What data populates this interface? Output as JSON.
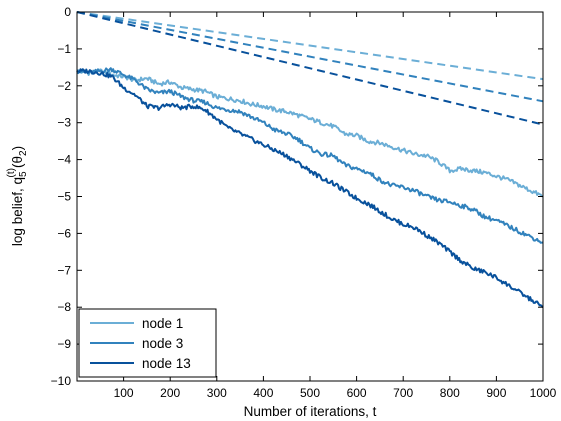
{
  "chart_data": {
    "type": "line",
    "xlabel": "Number of iterations, t",
    "ylabel": {
      "prefix": "log belief, q",
      "sub": "5",
      "sup": "(t)",
      "theta_open": "(θ",
      "theta_sub": "2",
      "theta_close": ")"
    },
    "xlim": [
      0,
      1000
    ],
    "ylim": [
      -10,
      0
    ],
    "xticks": [
      100,
      200,
      300,
      400,
      500,
      600,
      700,
      800,
      900,
      1000
    ],
    "yticks": [
      0,
      -1,
      -2,
      -3,
      -4,
      -5,
      -6,
      -7,
      -8,
      -9,
      -10
    ],
    "ytick_labels": [
      "0",
      "−1",
      "−2",
      "−3",
      "−4",
      "−5",
      "−6",
      "−7",
      "−8",
      "−9",
      "−10"
    ],
    "grid": false,
    "legend_position": "bottom-left",
    "series": [
      {
        "name": "node 1",
        "color": "#6baed6",
        "style": "solid",
        "points": [
          [
            0,
            -1.6
          ],
          [
            25,
            -1.65
          ],
          [
            50,
            -1.6
          ],
          [
            75,
            -1.7
          ],
          [
            100,
            -1.75
          ],
          [
            125,
            -1.85
          ],
          [
            150,
            -1.8
          ],
          [
            175,
            -1.95
          ],
          [
            200,
            -1.9
          ],
          [
            225,
            -2.05
          ],
          [
            250,
            -2.1
          ],
          [
            275,
            -2.15
          ],
          [
            300,
            -2.3
          ],
          [
            325,
            -2.35
          ],
          [
            350,
            -2.4
          ],
          [
            375,
            -2.5
          ],
          [
            400,
            -2.55
          ],
          [
            425,
            -2.65
          ],
          [
            450,
            -2.7
          ],
          [
            475,
            -2.8
          ],
          [
            500,
            -2.9
          ],
          [
            525,
            -3.0
          ],
          [
            550,
            -3.1
          ],
          [
            575,
            -3.3
          ],
          [
            600,
            -3.35
          ],
          [
            625,
            -3.5
          ],
          [
            650,
            -3.55
          ],
          [
            675,
            -3.65
          ],
          [
            700,
            -3.75
          ],
          [
            725,
            -3.85
          ],
          [
            750,
            -3.9
          ],
          [
            775,
            -4.05
          ],
          [
            800,
            -4.3
          ],
          [
            825,
            -4.25
          ],
          [
            850,
            -4.3
          ],
          [
            875,
            -4.35
          ],
          [
            900,
            -4.45
          ],
          [
            925,
            -4.55
          ],
          [
            950,
            -4.7
          ],
          [
            975,
            -4.85
          ],
          [
            1000,
            -5.0
          ]
        ],
        "dashed_points": [
          [
            0,
            0
          ],
          [
            1000,
            -1.82
          ]
        ]
      },
      {
        "name": "node 3",
        "color": "#3182bd",
        "style": "solid",
        "points": [
          [
            0,
            -1.6
          ],
          [
            25,
            -1.65
          ],
          [
            50,
            -1.6
          ],
          [
            75,
            -1.55
          ],
          [
            100,
            -1.7
          ],
          [
            125,
            -1.85
          ],
          [
            150,
            -2.1
          ],
          [
            175,
            -2.2
          ],
          [
            200,
            -2.15
          ],
          [
            225,
            -2.3
          ],
          [
            250,
            -2.4
          ],
          [
            275,
            -2.45
          ],
          [
            300,
            -2.6
          ],
          [
            325,
            -2.65
          ],
          [
            350,
            -2.7
          ],
          [
            375,
            -2.85
          ],
          [
            400,
            -3.0
          ],
          [
            425,
            -3.2
          ],
          [
            450,
            -3.3
          ],
          [
            475,
            -3.45
          ],
          [
            500,
            -3.7
          ],
          [
            525,
            -3.85
          ],
          [
            550,
            -3.9
          ],
          [
            575,
            -4.15
          ],
          [
            600,
            -4.25
          ],
          [
            625,
            -4.35
          ],
          [
            650,
            -4.55
          ],
          [
            675,
            -4.7
          ],
          [
            700,
            -4.75
          ],
          [
            725,
            -4.85
          ],
          [
            750,
            -5.0
          ],
          [
            775,
            -5.1
          ],
          [
            800,
            -5.15
          ],
          [
            825,
            -5.25
          ],
          [
            850,
            -5.35
          ],
          [
            875,
            -5.55
          ],
          [
            900,
            -5.65
          ],
          [
            925,
            -5.8
          ],
          [
            950,
            -5.95
          ],
          [
            975,
            -6.1
          ],
          [
            1000,
            -6.25
          ]
        ],
        "dashed_points": [
          [
            0,
            0
          ],
          [
            1000,
            -2.42
          ]
        ]
      },
      {
        "name": "node 13",
        "color": "#08519c",
        "style": "solid",
        "points": [
          [
            0,
            -1.6
          ],
          [
            25,
            -1.6
          ],
          [
            50,
            -1.65
          ],
          [
            75,
            -1.75
          ],
          [
            100,
            -2.05
          ],
          [
            125,
            -2.25
          ],
          [
            150,
            -2.55
          ],
          [
            175,
            -2.6
          ],
          [
            200,
            -2.5
          ],
          [
            225,
            -2.6
          ],
          [
            250,
            -2.55
          ],
          [
            275,
            -2.65
          ],
          [
            300,
            -2.9
          ],
          [
            325,
            -3.15
          ],
          [
            350,
            -3.3
          ],
          [
            375,
            -3.45
          ],
          [
            400,
            -3.6
          ],
          [
            425,
            -3.75
          ],
          [
            450,
            -3.9
          ],
          [
            475,
            -4.1
          ],
          [
            500,
            -4.3
          ],
          [
            525,
            -4.5
          ],
          [
            550,
            -4.65
          ],
          [
            575,
            -4.85
          ],
          [
            600,
            -5.05
          ],
          [
            625,
            -5.2
          ],
          [
            650,
            -5.4
          ],
          [
            675,
            -5.6
          ],
          [
            700,
            -5.75
          ],
          [
            725,
            -5.85
          ],
          [
            750,
            -6.05
          ],
          [
            775,
            -6.25
          ],
          [
            800,
            -6.5
          ],
          [
            825,
            -6.75
          ],
          [
            850,
            -6.95
          ],
          [
            875,
            -7.05
          ],
          [
            900,
            -7.2
          ],
          [
            925,
            -7.4
          ],
          [
            950,
            -7.6
          ],
          [
            975,
            -7.8
          ],
          [
            1000,
            -8.0
          ]
        ],
        "dashed_points": [
          [
            0,
            0
          ],
          [
            1000,
            -3.05
          ]
        ]
      }
    ]
  }
}
